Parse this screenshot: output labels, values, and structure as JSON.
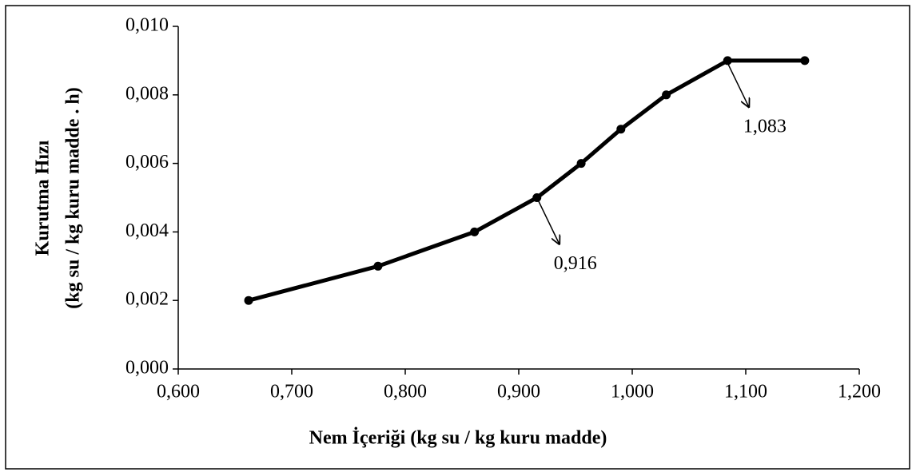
{
  "chart_data": {
    "type": "line",
    "xlabel": "Nem İçeriği (kg su / kg kuru madde)",
    "ylabel": [
      "Kurutma Hızı",
      "(kg su / kg kuru madde . h)"
    ],
    "x": [
      0.662,
      0.776,
      0.861,
      0.916,
      0.955,
      0.99,
      1.03,
      1.084,
      1.152
    ],
    "series": [
      {
        "color": "#000000",
        "values": [
          0.002,
          0.003,
          0.004,
          0.005,
          0.006,
          0.007,
          0.008,
          0.009,
          0.009
        ]
      }
    ],
    "xlim": [
      0.6,
      1.2
    ],
    "xticks": [
      {
        "value": 0.6,
        "label": "0,600"
      },
      {
        "value": 0.7,
        "label": "0,700"
      },
      {
        "value": 0.8,
        "label": "0,800"
      },
      {
        "value": 0.9,
        "label": "0,900"
      },
      {
        "value": 1.0,
        "label": "1,000"
      },
      {
        "value": 1.1,
        "label": "1,100"
      },
      {
        "value": 1.2,
        "label": "1,200"
      }
    ],
    "ylim": [
      0,
      0.01
    ],
    "yticks": [
      {
        "value": 0,
        "label": "0,000"
      },
      {
        "value": 0.002,
        "label": "0,002"
      },
      {
        "value": 0.004,
        "label": "0,004"
      },
      {
        "value": 0.006,
        "label": "0,006"
      },
      {
        "value": 0.008,
        "label": "0,008"
      },
      {
        "value": 0.01,
        "label": "0,010"
      }
    ],
    "annotations": [
      {
        "text": "0,916",
        "x": 0.916,
        "y": 0.005
      },
      {
        "text": "1,083",
        "x": 1.083,
        "y": 0.009
      }
    ],
    "grid": false
  }
}
